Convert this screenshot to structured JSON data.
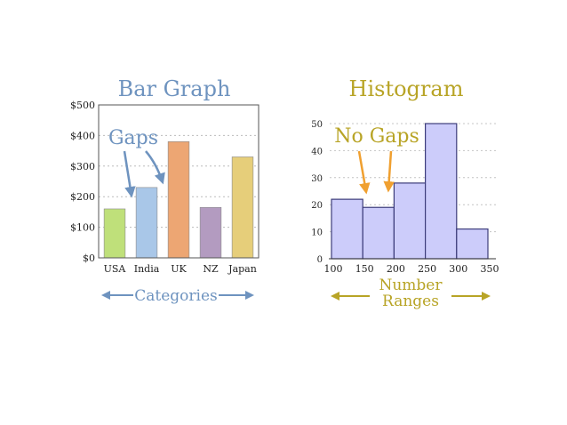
{
  "chart_data": [
    {
      "type": "bar",
      "title": "Bar Graph",
      "categories": [
        "USA",
        "India",
        "UK",
        "NZ",
        "Japan"
      ],
      "values": [
        160,
        230,
        380,
        165,
        330
      ],
      "colors": [
        "#bfe07a",
        "#a9c7e8",
        "#eda673",
        "#b39bc0",
        "#e6ce7a"
      ],
      "ylim": [
        0,
        500
      ],
      "yticks": [
        0,
        100,
        200,
        300,
        400,
        500
      ],
      "ytick_labels": [
        "$0",
        "$100",
        "$200",
        "$300",
        "$400",
        "$500"
      ],
      "grid": true,
      "annotation": "Gaps",
      "footer": "Categories",
      "accent": "#6e93bf"
    },
    {
      "type": "bar",
      "title": "Histogram",
      "bins": [
        [
          100,
          150
        ],
        [
          150,
          200
        ],
        [
          200,
          250
        ],
        [
          250,
          300
        ],
        [
          300,
          350
        ]
      ],
      "values": [
        22,
        19,
        28,
        50,
        11
      ],
      "xticks": [
        100,
        150,
        200,
        250,
        300,
        350
      ],
      "yticks": [
        0,
        10,
        20,
        30,
        40,
        50
      ],
      "ylim": [
        0,
        55
      ],
      "grid": true,
      "annotation": "No Gaps",
      "footer": [
        "Number",
        "Ranges"
      ],
      "bar_color": "#ccccfa",
      "bar_edge": "#3c3c7a",
      "accent": "#b8a426",
      "arrow_color": "#f0a030"
    }
  ]
}
